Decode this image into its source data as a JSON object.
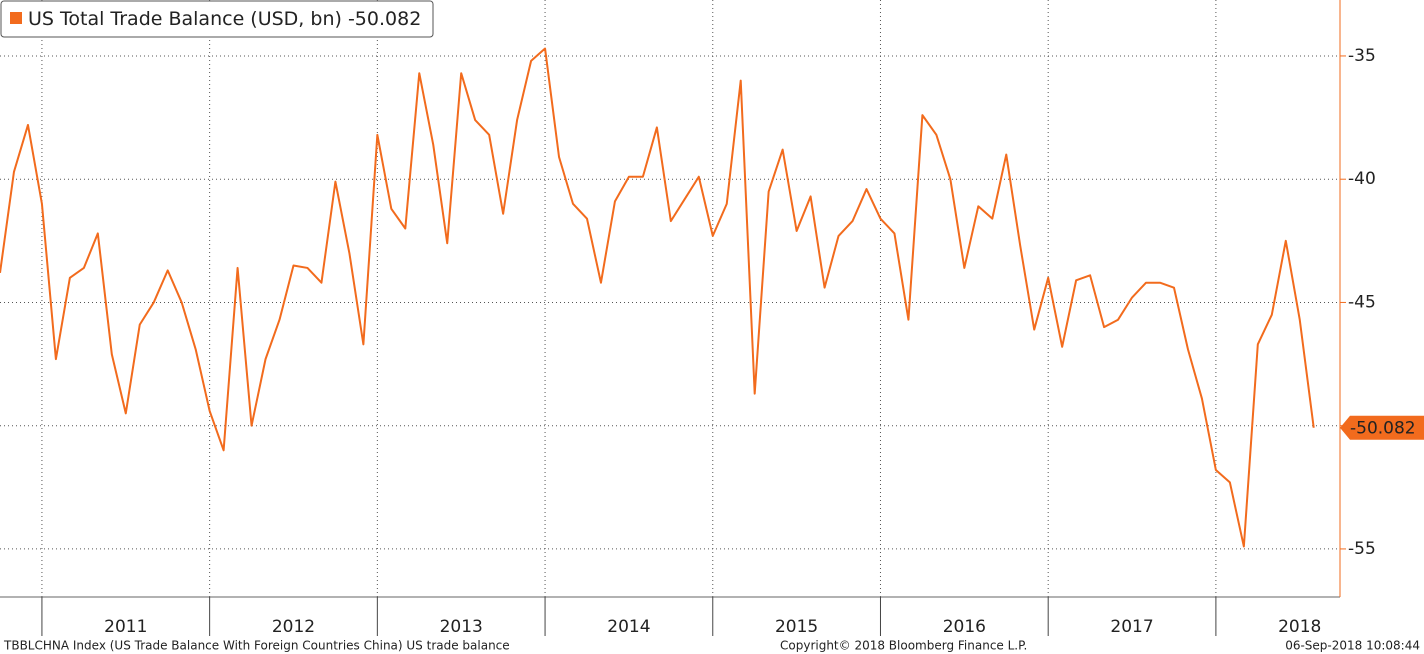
{
  "chart_data": {
    "type": "line",
    "series": [
      {
        "name": "US Total Trade Balance (USD, bn)",
        "color": "#f26b1d",
        "values": [
          -43.8,
          -39.7,
          -37.8,
          -41.0,
          -47.3,
          -44.0,
          -43.6,
          -42.2,
          -47.1,
          -49.5,
          -45.9,
          -45.0,
          -43.7,
          -45.0,
          -46.9,
          -49.4,
          -51.0,
          -43.6,
          -50.0,
          -47.3,
          -45.7,
          -43.5,
          -43.6,
          -44.2,
          -40.1,
          -43.0,
          -46.7,
          -38.2,
          -41.2,
          -42.0,
          -35.7,
          -38.6,
          -42.6,
          -35.7,
          -37.6,
          -38.2,
          -41.4,
          -37.6,
          -35.2,
          -34.7,
          -39.1,
          -41.0,
          -41.6,
          -44.2,
          -40.9,
          -39.9,
          -39.9,
          -37.9,
          -41.7,
          -40.8,
          -39.9,
          -42.3,
          -41.0,
          -36.0,
          -48.7,
          -40.5,
          -38.8,
          -42.1,
          -40.7,
          -44.4,
          -42.3,
          -41.7,
          -40.4,
          -41.6,
          -42.2,
          -45.7,
          -37.4,
          -38.2,
          -40.0,
          -43.6,
          -41.1,
          -41.6,
          -39.0,
          -42.7,
          -46.1,
          -44.0,
          -46.8,
          -44.1,
          -43.9,
          -46.0,
          -45.7,
          -44.8,
          -44.2,
          -44.2,
          -44.4,
          -46.9,
          -48.9,
          -51.8,
          -52.3,
          -54.9,
          -46.7,
          -45.5,
          -42.5,
          -45.7,
          -50.082
        ]
      }
    ],
    "x": [
      2010.75,
      2010.8333,
      2010.9167,
      2011.0,
      2011.0833,
      2011.1667,
      2011.25,
      2011.3333,
      2011.4167,
      2011.5,
      2011.5833,
      2011.6667,
      2011.75,
      2011.8333,
      2011.9167,
      2012.0,
      2012.0833,
      2012.1667,
      2012.25,
      2012.3333,
      2012.4167,
      2012.5,
      2012.5833,
      2012.6667,
      2012.75,
      2012.8333,
      2012.9167,
      2013.0,
      2013.0833,
      2013.1667,
      2013.25,
      2013.3333,
      2013.4167,
      2013.5,
      2013.5833,
      2013.6667,
      2013.75,
      2013.8333,
      2013.9167,
      2014.0,
      2014.0833,
      2014.1667,
      2014.25,
      2014.3333,
      2014.4167,
      2014.5,
      2014.5833,
      2014.6667,
      2014.75,
      2014.8333,
      2014.9167,
      2015.0,
      2015.0833,
      2015.1667,
      2015.25,
      2015.3333,
      2015.4167,
      2015.5,
      2015.5833,
      2015.6667,
      2015.75,
      2015.8333,
      2015.9167,
      2016.0,
      2016.0833,
      2016.1667,
      2016.25,
      2016.3333,
      2016.4167,
      2016.5,
      2016.5833,
      2016.6667,
      2016.75,
      2016.8333,
      2016.9167,
      2017.0,
      2017.0833,
      2017.1667,
      2017.25,
      2017.3333,
      2017.4167,
      2017.5,
      2017.5833,
      2017.6667,
      2017.75,
      2017.8333,
      2017.9167,
      2018.0,
      2018.0833,
      2018.1667,
      2018.25,
      2018.3333,
      2018.4167,
      2018.5,
      2018.5833
    ],
    "xlim": [
      2010.75,
      2018.74
    ],
    "xticks": [
      2011,
      2012,
      2013,
      2014,
      2015,
      2016,
      2017,
      2018
    ],
    "ylim": [
      -56.95,
      -32.73
    ],
    "yticks": [
      -35,
      -40,
      -45,
      -50,
      -55
    ],
    "grid": true
  },
  "footer": {
    "source": "TBBLCHNA Index (US Trade Balance With Foreign Countries China) US trade balance",
    "copyright": "Copyright© 2018 Bloomberg Finance L.P.",
    "timestamp": "06-Sep-2018 10:08:44"
  }
}
